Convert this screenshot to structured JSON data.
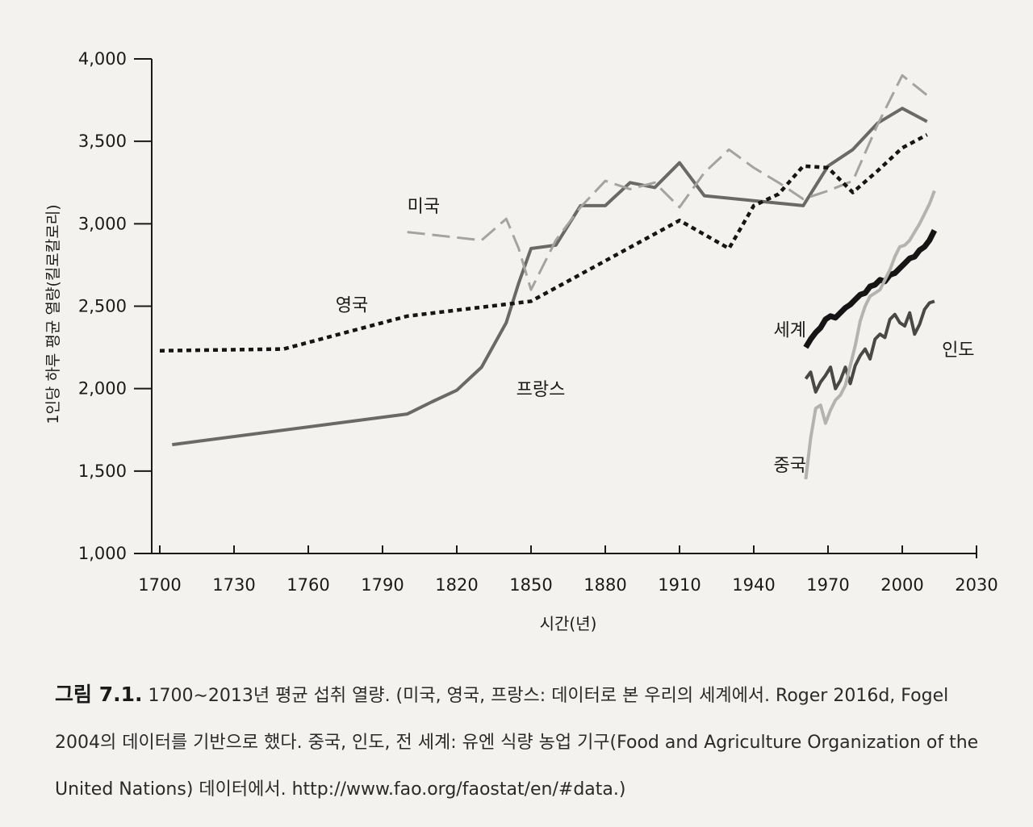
{
  "chart_data": {
    "type": "line",
    "title": "",
    "xlabel": "시간(년)",
    "ylabel": "1인당 하루 평균 열량(킬로칼로리)",
    "xlim": [
      1700,
      2030
    ],
    "ylim": [
      1000,
      4000
    ],
    "x_ticks": [
      "1700",
      "1730",
      "1760",
      "1790",
      "1820",
      "1850",
      "1880",
      "1910",
      "1940",
      "1970",
      "2000",
      "2030"
    ],
    "y_ticks": [
      "1,000",
      "1,500",
      "2,000",
      "2,500",
      "3,000",
      "3,500",
      "4,000"
    ],
    "series": [
      {
        "name": "프랑스",
        "color": "#6b6966",
        "style": "solid",
        "x": [
          1705,
          1800,
          1810,
          1820,
          1830,
          1840,
          1845,
          1850,
          1860,
          1870,
          1880,
          1890,
          1900,
          1910,
          1920,
          1960,
          1970,
          1980,
          1990,
          2000,
          2010
        ],
        "y": [
          1660,
          1846,
          1920,
          1990,
          2130,
          2400,
          2640,
          2850,
          2870,
          3110,
          3110,
          3250,
          3220,
          3370,
          3170,
          3110,
          3350,
          3450,
          3610,
          3700,
          3620
        ]
      },
      {
        "name": "미국",
        "color": "#a5a3a0",
        "style": "dashed",
        "x": [
          1800,
          1830,
          1840,
          1845,
          1850,
          1860,
          1870,
          1880,
          1890,
          1900,
          1910,
          1920,
          1930,
          1940,
          1950,
          1960,
          1970,
          1980,
          1990,
          2000,
          2010
        ],
        "y": [
          2950,
          2900,
          3030,
          2850,
          2600,
          2900,
          3100,
          3260,
          3210,
          3250,
          3100,
          3310,
          3450,
          3340,
          3250,
          3150,
          3200,
          3260,
          3600,
          3900,
          3780
        ]
      },
      {
        "name": "영국",
        "color": "#151515",
        "style": "dotted",
        "x": [
          1700,
          1750,
          1800,
          1850,
          1910,
          1930,
          1940,
          1950,
          1960,
          1970,
          1980,
          1990,
          2000,
          2010
        ],
        "y": [
          2230,
          2240,
          2440,
          2530,
          3020,
          2850,
          3110,
          3180,
          3350,
          3340,
          3190,
          3320,
          3460,
          3540
        ]
      },
      {
        "name": "세계",
        "color": "#151515",
        "style": "thick",
        "x": [
          1961,
          1963,
          1965,
          1967,
          1969,
          1971,
          1973,
          1975,
          1977,
          1979,
          1981,
          1983,
          1985,
          1987,
          1989,
          1991,
          1993,
          1995,
          1997,
          1999,
          2001,
          2003,
          2005,
          2007,
          2009,
          2011,
          2013
        ],
        "y": [
          2250,
          2300,
          2340,
          2370,
          2420,
          2440,
          2430,
          2460,
          2490,
          2510,
          2540,
          2570,
          2580,
          2620,
          2630,
          2660,
          2650,
          2690,
          2700,
          2730,
          2760,
          2790,
          2800,
          2840,
          2860,
          2900,
          2960
        ]
      },
      {
        "name": "인도",
        "color": "#4a4846",
        "style": "solid",
        "x": [
          1961,
          1963,
          1965,
          1967,
          1969,
          1971,
          1973,
          1975,
          1977,
          1979,
          1981,
          1983,
          1985,
          1987,
          1989,
          1991,
          1993,
          1995,
          1997,
          1999,
          2001,
          2003,
          2005,
          2007,
          2009,
          2011,
          2013
        ],
        "y": [
          2060,
          2100,
          1980,
          2040,
          2080,
          2130,
          2000,
          2050,
          2130,
          2030,
          2140,
          2200,
          2240,
          2180,
          2300,
          2330,
          2310,
          2420,
          2450,
          2400,
          2380,
          2460,
          2330,
          2390,
          2480,
          2520,
          2530
        ]
      },
      {
        "name": "중국",
        "color": "#b5b3b0",
        "style": "solid",
        "x": [
          1961,
          1963,
          1965,
          1967,
          1969,
          1971,
          1973,
          1975,
          1977,
          1979,
          1981,
          1983,
          1985,
          1987,
          1989,
          1991,
          1993,
          1995,
          1997,
          1999,
          2001,
          2003,
          2005,
          2007,
          2009,
          2011,
          2013
        ],
        "y": [
          1450,
          1700,
          1880,
          1900,
          1790,
          1870,
          1930,
          1960,
          2020,
          2140,
          2260,
          2410,
          2500,
          2560,
          2580,
          2600,
          2660,
          2720,
          2800,
          2860,
          2870,
          2900,
          2950,
          3000,
          3060,
          3120,
          3200
        ]
      }
    ],
    "annotations": [
      {
        "text": "미국",
        "x": 1800,
        "y": 3070
      },
      {
        "text": "영국",
        "x": 1771,
        "y": 2470
      },
      {
        "text": "프랑스",
        "x": 1844,
        "y": 1960
      },
      {
        "text": "세계",
        "x": 1948,
        "y": 2320
      },
      {
        "text": "인도",
        "x": 2016,
        "y": 2200
      },
      {
        "text": "중국",
        "x": 1948,
        "y": 1500
      }
    ]
  },
  "caption": {
    "figure_label": "그림 7.1.",
    "text": " 1700∼2013년 평균 섭취 열량. (미국, 영국, 프랑스: 데이터로 본 우리의 세계에서. Roger 2016d, Fogel 2004의 데이터를 기반으로 했다. 중국, 인도, 전 세계: 유엔 식량 농업 기구(Food and Agriculture Organization of the United Nations) 데이터에서. http://www.fao.org/faostat/en/#data.)"
  }
}
